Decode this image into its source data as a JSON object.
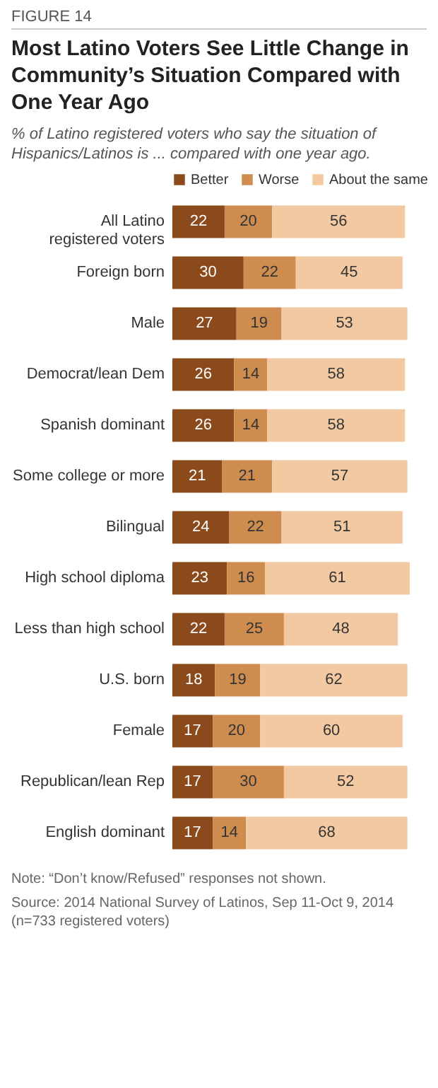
{
  "chart_data": {
    "type": "bar",
    "orientation": "horizontal",
    "stacked": true,
    "data_labels": true,
    "legend": "top",
    "grid": false,
    "title": "Most Latino Voters See Little Change in Community’s Situation Compared with One Year Ago",
    "subtitle": "% of Latino registered voters who say the situation of Hispanics/Latinos is ... compared with one year ago.",
    "annotations": [
      "FIGURE 14",
      "Note: “Don’t know/Refused” responses not shown.",
      "Source: 2014 National Survey of Latinos, Sep 11-Oct 9, 2014 (n=733 registered voters)"
    ],
    "categories": [
      "All Latino registered voters",
      "Foreign born",
      "Male",
      "Democrat/lean Dem",
      "Spanish dominant",
      "Some college or more",
      "Bilingual",
      "High school diploma",
      "Less than high school",
      "U.S. born",
      "Female",
      "Republican/lean Rep",
      "English dominant"
    ],
    "series": [
      {
        "name": "Better",
        "color": "#8a4a1c",
        "values": [
          22,
          30,
          27,
          26,
          26,
          21,
          24,
          23,
          22,
          18,
          17,
          17,
          17
        ]
      },
      {
        "name": "Worse",
        "color": "#cf8c4f",
        "values": [
          20,
          22,
          19,
          14,
          14,
          21,
          22,
          16,
          25,
          19,
          20,
          30,
          14
        ]
      },
      {
        "name": "About the same",
        "color": "#f2c9a1",
        "values": [
          56,
          45,
          53,
          58,
          58,
          57,
          51,
          61,
          48,
          62,
          60,
          52,
          68
        ]
      }
    ]
  }
}
